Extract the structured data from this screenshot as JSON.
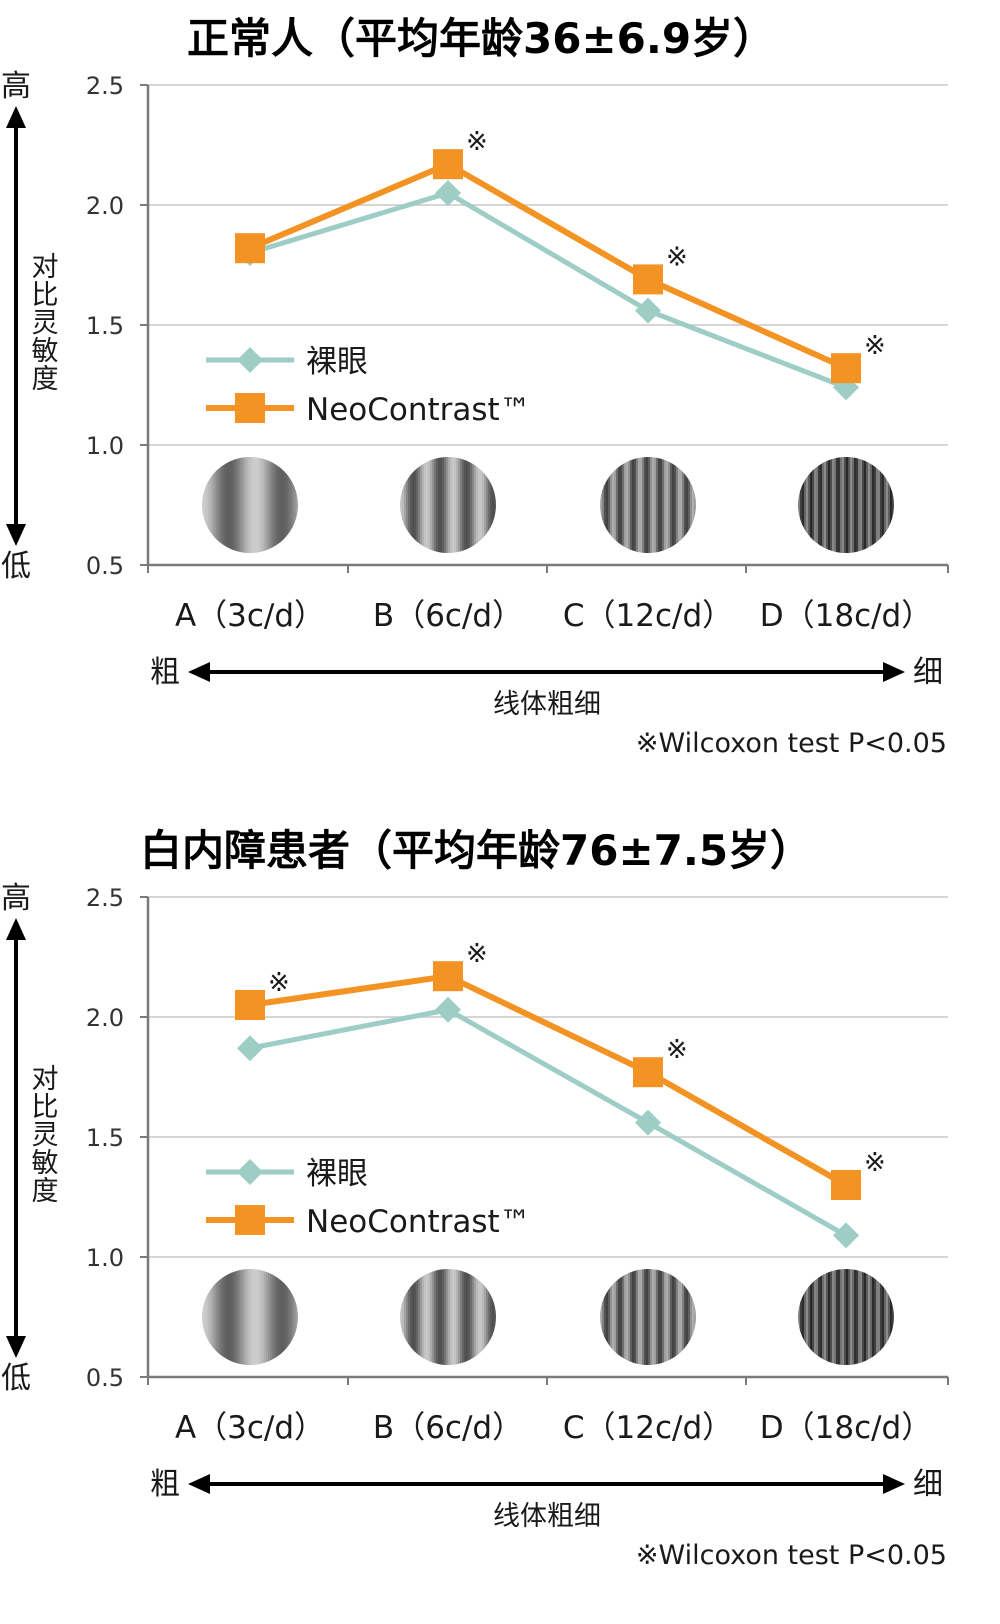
{
  "colors": {
    "bare_eye": "#9ecdc6",
    "neocontrast": "#f39323",
    "grid": "#c8c8c8",
    "axis": "#7a7a7a"
  },
  "icons": {
    "stimulus": "grating-circle-icon",
    "legend_bare": "diamond-icon",
    "legend_neo": "square-icon"
  },
  "chart_data": [
    {
      "type": "line",
      "title": "正常人（平均年龄36±6.9岁）",
      "ylabel": "对比灵敏度",
      "y_high": "高",
      "y_low": "低",
      "ylim": [
        0.5,
        2.5
      ],
      "yticks": [
        "2.5",
        "2.0",
        "1.5",
        "1.0",
        "0.5"
      ],
      "categories": [
        "A（3c/d）",
        "B（6c/d）",
        "C（12c/d）",
        "D（18c/d）"
      ],
      "grating_cycles": [
        3,
        6,
        12,
        18
      ],
      "x_left": "粗",
      "x_right": "细",
      "xlabel": "线体粗细",
      "series": [
        {
          "name": "裸眼",
          "marker": "diamond",
          "values": [
            1.8,
            2.05,
            1.56,
            1.24
          ]
        },
        {
          "name": "NeoContrast™",
          "marker": "square",
          "values": [
            1.82,
            2.17,
            1.69,
            1.32
          ]
        }
      ],
      "significance_mark": "※",
      "significant": [
        false,
        true,
        true,
        true
      ],
      "note": "※Wilcoxon test P<0.05",
      "grid": true,
      "legend_position": "middle-left"
    },
    {
      "type": "line",
      "title": "白内障患者（平均年龄76±7.5岁）",
      "ylabel": "对比灵敏度",
      "y_high": "高",
      "y_low": "低",
      "ylim": [
        0.5,
        2.5
      ],
      "yticks": [
        "2.5",
        "2.0",
        "1.5",
        "1.0",
        "0.5"
      ],
      "categories": [
        "A（3c/d）",
        "B（6c/d）",
        "C（12c/d）",
        "D（18c/d）"
      ],
      "grating_cycles": [
        3,
        6,
        12,
        18
      ],
      "x_left": "粗",
      "x_right": "细",
      "xlabel": "线体粗细",
      "series": [
        {
          "name": "裸眼",
          "marker": "diamond",
          "values": [
            1.87,
            2.03,
            1.56,
            1.09
          ]
        },
        {
          "name": "NeoContrast™",
          "marker": "square",
          "values": [
            2.05,
            2.17,
            1.77,
            1.3
          ]
        }
      ],
      "significance_mark": "※",
      "significant": [
        true,
        true,
        true,
        true
      ],
      "note": "※Wilcoxon test P<0.05",
      "grid": true,
      "legend_position": "middle-left"
    }
  ]
}
